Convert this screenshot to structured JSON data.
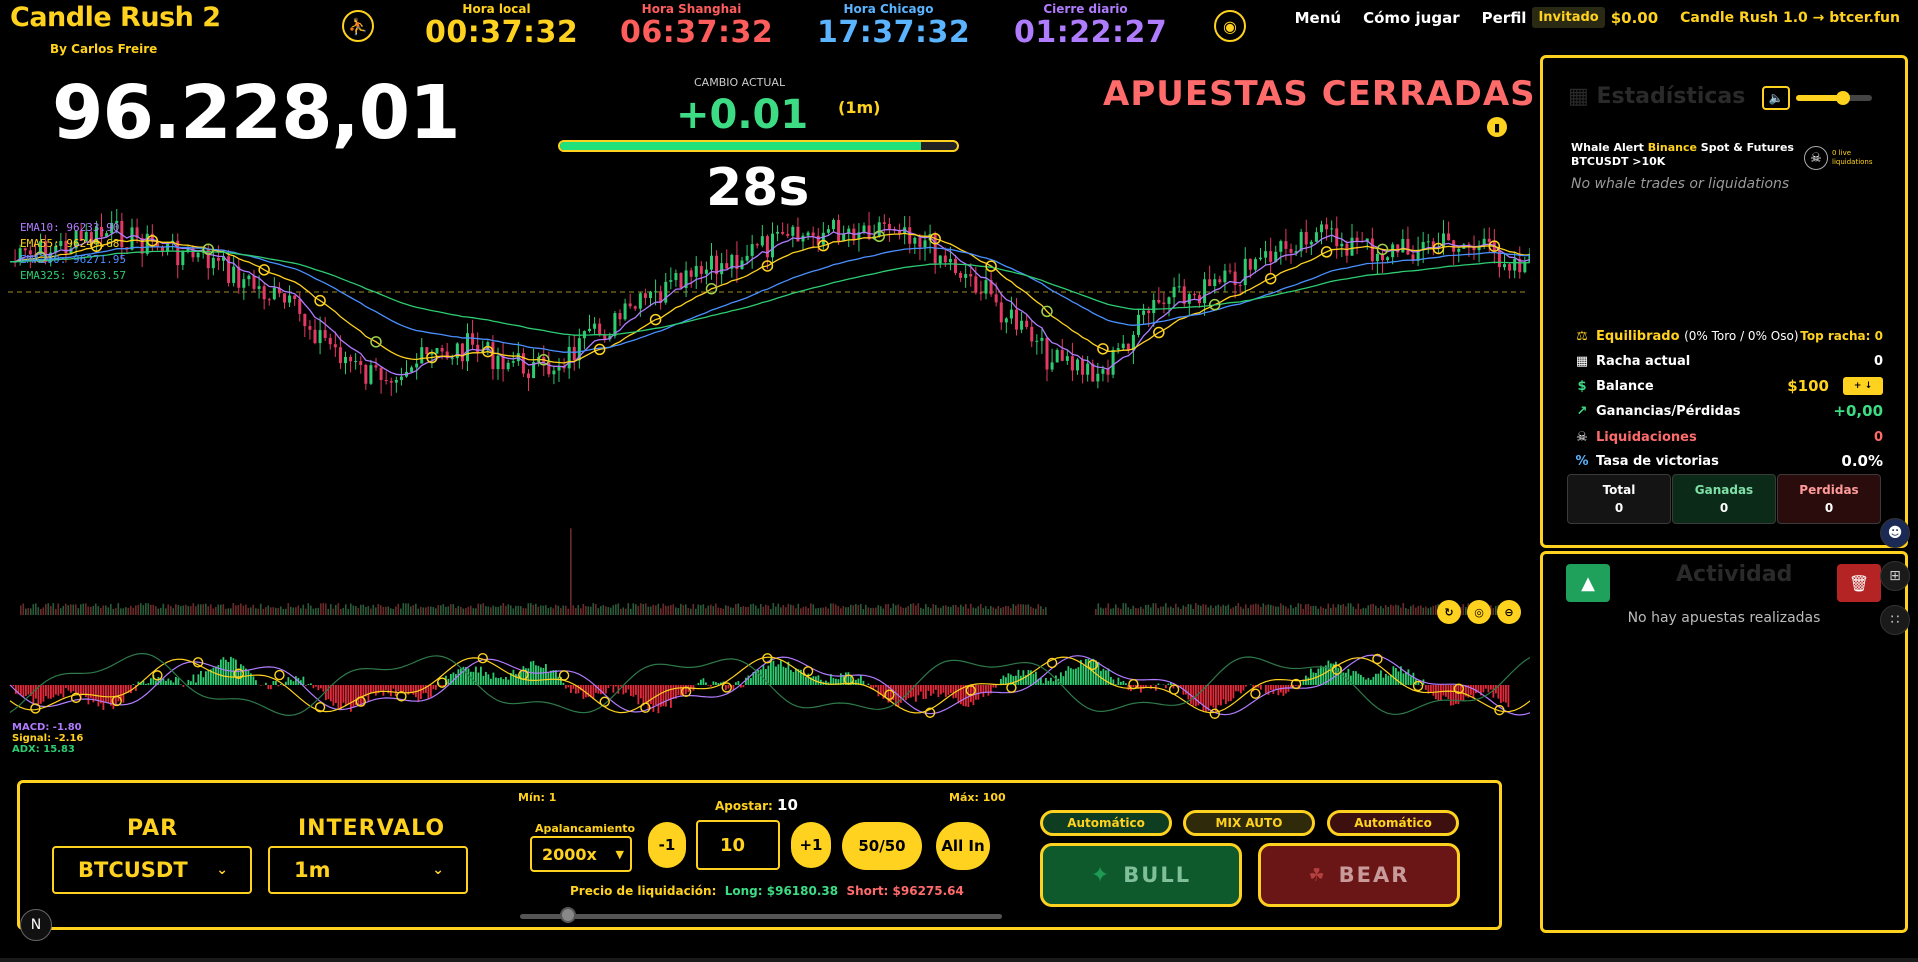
{
  "app": {
    "title": "Candle Rush 2",
    "byline": "By Carlos Freire"
  },
  "clocks": [
    {
      "label": "Hora local",
      "value": "00:37:32",
      "label_color": "#ffd21f",
      "value_color": "#ffd21f"
    },
    {
      "label": "Hora Shanghai",
      "value": "06:37:32",
      "label_color": "#ff5c5c",
      "value_color": "#ff5c5c"
    },
    {
      "label": "Hora Chicago",
      "value": "17:37:32",
      "label_color": "#5ab4ff",
      "value_color": "#5ab4ff"
    },
    {
      "label": "Cierre diario",
      "value": "01:22:27",
      "label_color": "#b07cff",
      "value_color": "#b07cff"
    }
  ],
  "nav": {
    "menu": "Menú",
    "how_to_play": "Cómo jugar",
    "profile": "Perfil",
    "guest": "Invitado",
    "balance": "$0.00",
    "version": "Candle Rush 1.0 → btcer.fun"
  },
  "header": {
    "price": "96.228,01",
    "change_label": "CAMBIO ACTUAL",
    "change_value": "+0.01",
    "change_interval": "(1m)",
    "round_progress": 0.91,
    "countdown": "28s",
    "status": "APUESTAS CERRADAS"
  },
  "indicators": {
    "ema10": {
      "label": "EMA10: 96233.90",
      "color": "#b07cff"
    },
    "ema55": {
      "label": "EMA55: 96249.68",
      "color": "#ffd21f"
    },
    "ema200": {
      "label": "EMA200: 96271.95",
      "color": "#4a90ff"
    },
    "ema325": {
      "label": "EMA325: 96263.57",
      "color": "#2ecc71"
    },
    "macd": {
      "label": "MACD: -1.80",
      "color": "#b07cff"
    },
    "signal": {
      "label": "Signal: -2.16",
      "color": "#ffd21f"
    },
    "adx": {
      "label": "ADX: 15.83",
      "color": "#2ecc71"
    }
  },
  "bet": {
    "pair_label": "PAR",
    "pair_value": "BTCUSDT",
    "interval_label": "INTERVALO",
    "interval_value": "1m",
    "min_label": "Mín: 1",
    "max_label": "Máx: 100",
    "leverage_label": "Apalancamiento",
    "leverage_value": "2000x",
    "stake_label": "Apostar:",
    "stake_value": "10",
    "minus": "-1",
    "plus": "+1",
    "half": "50/50",
    "all_in": "All In",
    "liq_label": "Precio de liquidación:",
    "liq_long": "Long: $96180.38",
    "liq_short": "Short: $96275.64",
    "slider_level": 0.1,
    "mode_bull": "Automático",
    "mode_mix": "MIX AUTO",
    "mode_bear": "Automático",
    "bull": "BULL",
    "bear": "BEAR",
    "n_badge": "N"
  },
  "stats": {
    "title": "Estadísticas",
    "volume_level": 0.62,
    "whale_line1a": "Whale Alert ",
    "whale_line1b": "Binance",
    "whale_line1c": " Spot & Futures",
    "whale_line2": "BTCUSDT >10K",
    "whale_none": "No whale trades or liquidations",
    "live_liq_1": "0 live",
    "live_liq_2": "liquidations",
    "balanced_label": "Equilibrado",
    "balanced_detail": "(0% Toro / 0% Oso)",
    "top_streak_label": "Top racha:",
    "top_streak_value": "0",
    "streak_label": "Racha actual",
    "streak_value": "0",
    "balance_label": "Balance",
    "balance_value": "$100",
    "topup": "+ ↓",
    "pnl_label": "Ganancias/Pérdidas",
    "pnl_value": "+0,00",
    "liquidations_label": "Liquidaciones",
    "liquidations_value": "0",
    "winrate_label": "Tasa de victorias",
    "winrate_value": "0.0%",
    "total_label": "Total",
    "total_value": "0",
    "won_label": "Ganadas",
    "won_value": "0",
    "lost_label": "Perdidas",
    "lost_value": "0"
  },
  "activity": {
    "title": "Actividad",
    "empty": "No hay apuestas realizadas"
  },
  "icons": {
    "top_left_round": "runner-icon",
    "top_right_round": "target-icon",
    "chart_bar": "bar-chart-icon",
    "volume": "speaker-icon",
    "skull": "skull-icon",
    "bull": "bull-head-icon",
    "bear": "paw-icon",
    "dock": [
      "robot-icon",
      "crop-icon",
      "grid-icon"
    ]
  }
}
